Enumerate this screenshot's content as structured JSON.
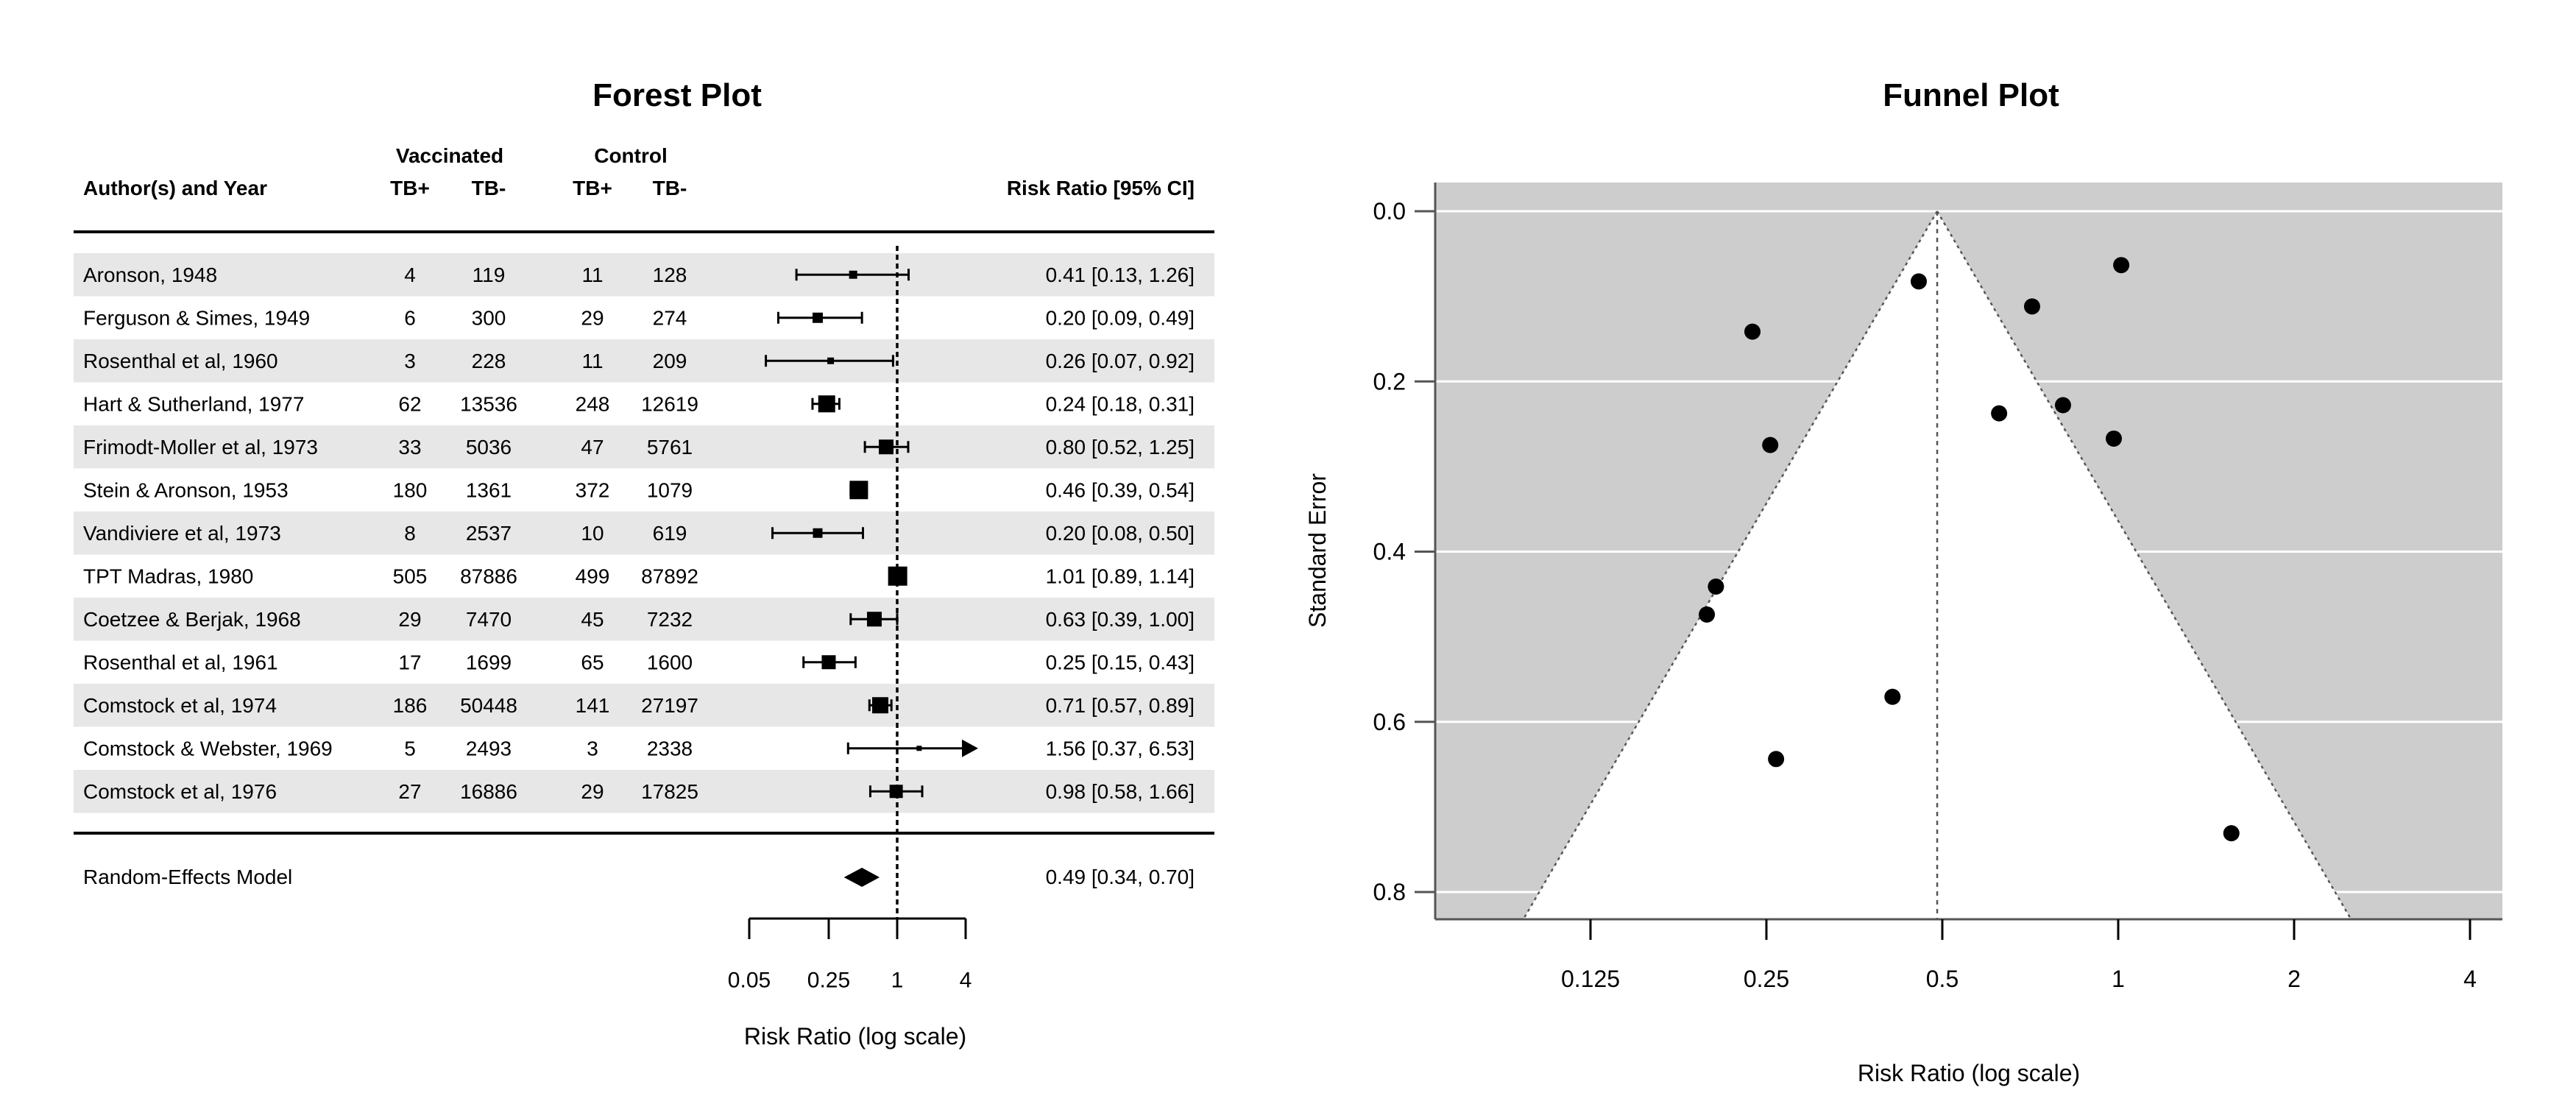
{
  "colors": {
    "row_stripe": "#e7e7e7",
    "funnel_shade": "#cdcdcd",
    "funnel_axis": "#555555",
    "funnel_grid": "#ffffff",
    "marker": "#000000"
  },
  "chart_data": [
    {
      "type": "forest",
      "title": "Forest Plot",
      "columns": {
        "author": "Author(s) and Year",
        "group_vaccinated": "Vaccinated",
        "group_control": "Control",
        "tb_pos": "TB+",
        "tb_neg": "TB-",
        "risk_ratio": "Risk Ratio [95% CI]"
      },
      "studies": [
        {
          "author": "Aronson, 1948",
          "v_tb_pos": "4",
          "v_tb_neg": "119",
          "c_tb_pos": "11",
          "c_tb_neg": "128",
          "rr": 0.41,
          "ci_low": 0.13,
          "ci_high": 1.26,
          "rr_label": "0.41 [0.13, 1.26]",
          "marker_size": 11
        },
        {
          "author": "Ferguson & Simes, 1949",
          "v_tb_pos": "6",
          "v_tb_neg": "300",
          "c_tb_pos": "29",
          "c_tb_neg": "274",
          "rr": 0.2,
          "ci_low": 0.09,
          "ci_high": 0.49,
          "rr_label": "0.20 [0.09, 0.49]",
          "marker_size": 14
        },
        {
          "author": "Rosenthal et al, 1960",
          "v_tb_pos": "3",
          "v_tb_neg": "228",
          "c_tb_pos": "11",
          "c_tb_neg": "209",
          "rr": 0.26,
          "ci_low": 0.07,
          "ci_high": 0.92,
          "rr_label": "0.26 [0.07, 0.92]",
          "marker_size": 9
        },
        {
          "author": "Hart & Sutherland, 1977",
          "v_tb_pos": "62",
          "v_tb_neg": "13536",
          "c_tb_pos": "248",
          "c_tb_neg": "12619",
          "rr": 0.24,
          "ci_low": 0.18,
          "ci_high": 0.31,
          "rr_label": "0.24 [0.18, 0.31]",
          "marker_size": 23
        },
        {
          "author": "Frimodt-Moller et al, 1973",
          "v_tb_pos": "33",
          "v_tb_neg": "5036",
          "c_tb_pos": "47",
          "c_tb_neg": "5761",
          "rr": 0.8,
          "ci_low": 0.52,
          "ci_high": 1.25,
          "rr_label": "0.80 [0.52, 1.25]",
          "marker_size": 20
        },
        {
          "author": "Stein & Aronson, 1953",
          "v_tb_pos": "180",
          "v_tb_neg": "1361",
          "c_tb_pos": "372",
          "c_tb_neg": "1079",
          "rr": 0.46,
          "ci_low": 0.39,
          "ci_high": 0.54,
          "rr_label": "0.46 [0.39, 0.54]",
          "marker_size": 25
        },
        {
          "author": "Vandiviere et al, 1973",
          "v_tb_pos": "8",
          "v_tb_neg": "2537",
          "c_tb_pos": "10",
          "c_tb_neg": "619",
          "rr": 0.2,
          "ci_low": 0.08,
          "ci_high": 0.5,
          "rr_label": "0.20 [0.08, 0.50]",
          "marker_size": 13
        },
        {
          "author": "TPT Madras, 1980",
          "v_tb_pos": "505",
          "v_tb_neg": "87886",
          "c_tb_pos": "499",
          "c_tb_neg": "87892",
          "rr": 1.01,
          "ci_low": 0.89,
          "ci_high": 1.14,
          "rr_label": "1.01 [0.89, 1.14]",
          "marker_size": 26
        },
        {
          "author": "Coetzee & Berjak, 1968",
          "v_tb_pos": "29",
          "v_tb_neg": "7470",
          "c_tb_pos": "45",
          "c_tb_neg": "7232",
          "rr": 0.63,
          "ci_low": 0.39,
          "ci_high": 1.0,
          "rr_label": "0.63 [0.39, 1.00]",
          "marker_size": 20
        },
        {
          "author": "Rosenthal et al, 1961",
          "v_tb_pos": "17",
          "v_tb_neg": "1699",
          "c_tb_pos": "65",
          "c_tb_neg": "1600",
          "rr": 0.25,
          "ci_low": 0.15,
          "ci_high": 0.43,
          "rr_label": "0.25 [0.15, 0.43]",
          "marker_size": 19
        },
        {
          "author": "Comstock et al, 1974",
          "v_tb_pos": "186",
          "v_tb_neg": "50448",
          "c_tb_pos": "141",
          "c_tb_neg": "27197",
          "rr": 0.71,
          "ci_low": 0.57,
          "ci_high": 0.89,
          "rr_label": "0.71 [0.57, 0.89]",
          "marker_size": 22
        },
        {
          "author": "Comstock & Webster, 1969",
          "v_tb_pos": "5",
          "v_tb_neg": "2493",
          "c_tb_pos": "3",
          "c_tb_neg": "2338",
          "rr": 1.56,
          "ci_low": 0.37,
          "ci_high": 6.53,
          "rr_label": "1.56 [0.37, 6.53]",
          "marker_size": 7,
          "ci_arrow_right": true
        },
        {
          "author": "Comstock et al, 1976",
          "v_tb_pos": "27",
          "v_tb_neg": "16886",
          "c_tb_pos": "29",
          "c_tb_neg": "17825",
          "rr": 0.98,
          "ci_low": 0.58,
          "ci_high": 1.66,
          "rr_label": "0.98 [0.58, 1.66]",
          "marker_size": 18
        }
      ],
      "summary": {
        "label": "Random-Effects Model",
        "rr": 0.49,
        "ci_low": 0.34,
        "ci_high": 0.7,
        "rr_label": "0.49 [0.34, 0.70]"
      },
      "x_axis": {
        "label": "Risk Ratio (log scale)",
        "ticks": [
          "0.05",
          "0.25",
          "1",
          "4"
        ],
        "tick_values": [
          0.05,
          0.25,
          1,
          4
        ],
        "min": 0.05,
        "max": 4,
        "reference_line": 1
      }
    },
    {
      "type": "scatter",
      "subtype": "funnel",
      "title": "Funnel Plot",
      "xlabel": "Risk Ratio (log scale)",
      "ylabel": "Standard Error",
      "x_ticks": [
        "0.125",
        "0.25",
        "0.5",
        "1",
        "2",
        "4"
      ],
      "x_tick_values": [
        0.125,
        0.25,
        0.5,
        1,
        2,
        4
      ],
      "y_ticks": [
        "0.0",
        "0.2",
        "0.4",
        "0.6",
        "0.8"
      ],
      "y_tick_values": [
        0,
        0.2,
        0.4,
        0.6,
        0.8
      ],
      "ylim": [
        0,
        0.832
      ],
      "estimate_rr": 0.49,
      "ci_z": 1.96,
      "grid": true,
      "legend": false,
      "points": [
        {
          "rr": 0.4109,
          "se": 0.5706
        },
        {
          "rr": 0.2049,
          "se": 0.4411
        },
        {
          "rr": 0.2597,
          "se": 0.6437
        },
        {
          "rr": 0.2366,
          "se": 0.1415
        },
        {
          "rr": 0.8045,
          "se": 0.2279
        },
        {
          "rr": 0.4557,
          "se": 0.0825
        },
        {
          "rr": 0.1977,
          "se": 0.4739
        },
        {
          "rr": 1.012,
          "se": 0.0633
        },
        {
          "rr": 0.6254,
          "se": 0.2375
        },
        {
          "rr": 0.2538,
          "se": 0.2747
        },
        {
          "rr": 0.7122,
          "se": 0.1119
        },
        {
          "rr": 1.5619,
          "se": 0.7309
        },
        {
          "rr": 0.9828,
          "se": 0.2672
        }
      ]
    }
  ]
}
